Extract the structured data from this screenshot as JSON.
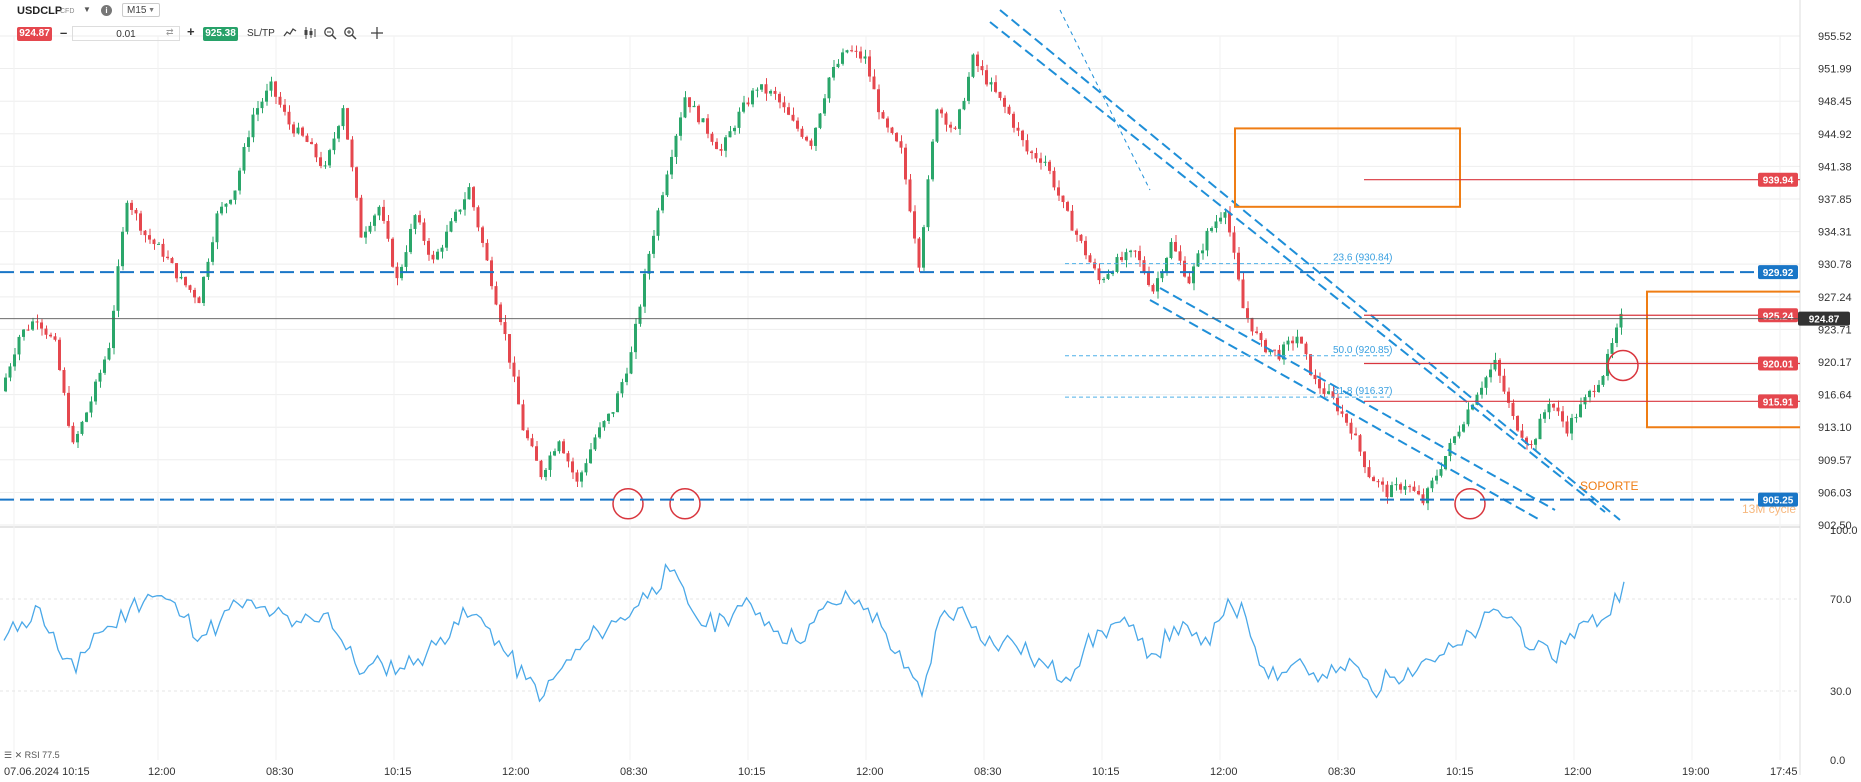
{
  "toolbar": {
    "symbol": "USDCLP",
    "instrument_type": "CFD",
    "info_icon": "info-icon",
    "timeframe": "M15",
    "sell_price": "924.87",
    "lot_size": "0.01",
    "buy_price": "925.38",
    "sltp_label": "SL/TP",
    "tools": [
      "line-chart-icon",
      "candles-icon",
      "zoom-out-icon",
      "zoom-in-icon",
      "crosshair-icon"
    ]
  },
  "colors": {
    "bull": "#2aa66a",
    "bear": "#e5474e",
    "trend_blue": "#1f8fd8",
    "level_blue": "#1976c7",
    "orange": "#ef7d14",
    "red_line": "#d9363e",
    "rsi_line": "#4aa8e8",
    "current_badge": "#333333"
  },
  "chart_data": [
    {
      "type": "candlestick",
      "symbol": "USDCLP",
      "timeframe": "M15",
      "ylim": [
        902.5,
        955.52
      ],
      "price_ticks": [
        "955.52",
        "951.99",
        "948.45",
        "944.92",
        "941.38",
        "937.85",
        "934.31",
        "930.78",
        "927.24",
        "923.71",
        "920.17",
        "916.64",
        "913.10",
        "909.57",
        "906.03",
        "902.50"
      ],
      "time_ticks": [
        "07.06.2024 10:15",
        "12:00",
        "08:30",
        "10:15",
        "12:00",
        "08:30",
        "10:15",
        "12:00",
        "08:30",
        "10:15",
        "12:00",
        "08:30",
        "10:15",
        "12:00",
        "19:00",
        "17:45"
      ],
      "close_path": [
        [
          0,
          917
        ],
        [
          1,
          923
        ],
        [
          2,
          925
        ],
        [
          3,
          922
        ],
        [
          4,
          911
        ],
        [
          5,
          916
        ],
        [
          6,
          922
        ],
        [
          7,
          938
        ],
        [
          8,
          934
        ],
        [
          9,
          932
        ],
        [
          10,
          929
        ],
        [
          11,
          927
        ],
        [
          12,
          936
        ],
        [
          13,
          939
        ],
        [
          14,
          947
        ],
        [
          15,
          950
        ],
        [
          16,
          946
        ],
        [
          17,
          944
        ],
        [
          18,
          941
        ],
        [
          19,
          948
        ],
        [
          20,
          934
        ],
        [
          21,
          937
        ],
        [
          22,
          929
        ],
        [
          23,
          936
        ],
        [
          24,
          931
        ],
        [
          25,
          935
        ],
        [
          26,
          939
        ],
        [
          27,
          931
        ],
        [
          28,
          923
        ],
        [
          29,
          913
        ],
        [
          30,
          908
        ],
        [
          31,
          912
        ],
        [
          32,
          907
        ],
        [
          33,
          912
        ],
        [
          34,
          915
        ],
        [
          35,
          921
        ],
        [
          36,
          932
        ],
        [
          37,
          941
        ],
        [
          38,
          949
        ],
        [
          39,
          946
        ],
        [
          40,
          943
        ],
        [
          41,
          947
        ],
        [
          42,
          950
        ],
        [
          43,
          949
        ],
        [
          44,
          946
        ],
        [
          45,
          944
        ],
        [
          46,
          951
        ],
        [
          47,
          954
        ],
        [
          48,
          953
        ],
        [
          49,
          946
        ],
        [
          50,
          943
        ],
        [
          51,
          931
        ],
        [
          52,
          948
        ],
        [
          53,
          945
        ],
        [
          54,
          953
        ],
        [
          55,
          950
        ],
        [
          56,
          947
        ],
        [
          57,
          943
        ],
        [
          58,
          942
        ],
        [
          59,
          937
        ],
        [
          60,
          933
        ],
        [
          61,
          929
        ],
        [
          62,
          931
        ],
        [
          63,
          932
        ],
        [
          64,
          928
        ],
        [
          65,
          933
        ],
        [
          66,
          929
        ],
        [
          67,
          934
        ],
        [
          68,
          937
        ],
        [
          69,
          926
        ],
        [
          70,
          922
        ],
        [
          71,
          921
        ],
        [
          72,
          923
        ],
        [
          73,
          918
        ],
        [
          74,
          916
        ],
        [
          75,
          913
        ],
        [
          76,
          908
        ],
        [
          77,
          906
        ],
        [
          78,
          907
        ],
        [
          79,
          905
        ],
        [
          80,
          909
        ],
        [
          81,
          913
        ],
        [
          82,
          917
        ],
        [
          83,
          920
        ],
        [
          84,
          914
        ],
        [
          85,
          911
        ],
        [
          86,
          916
        ],
        [
          87,
          913
        ],
        [
          88,
          916
        ],
        [
          89,
          919
        ],
        [
          90,
          924.87
        ]
      ],
      "horizontal_levels": [
        {
          "price": 939.94,
          "label": "939.94",
          "color": "red"
        },
        {
          "price": 929.92,
          "label": "929.92",
          "color": "blue",
          "style": "dashed"
        },
        {
          "price": 925.24,
          "label": "925.24",
          "color": "red"
        },
        {
          "price": 924.87,
          "label": "924.87",
          "color": "current"
        },
        {
          "price": 920.01,
          "label": "920.01",
          "color": "red"
        },
        {
          "price": 915.91,
          "label": "915.91",
          "color": "red"
        },
        {
          "price": 905.25,
          "label": "905.25",
          "color": "blue",
          "style": "dashed"
        }
      ],
      "annotations": [
        {
          "text": "23.6 (930.84)",
          "kind": "fibonacci"
        },
        {
          "text": "50.0 (920.85)",
          "kind": "fibonacci"
        },
        {
          "text": "61.8 (916.37)",
          "kind": "fibonacci"
        },
        {
          "text": "SOPORTE",
          "kind": "label"
        },
        {
          "text": "13M cycle",
          "kind": "label"
        }
      ]
    },
    {
      "type": "line",
      "name": "RSI",
      "legend": "RSI 77.5",
      "ylim": [
        0,
        100
      ],
      "ticks": [
        "100.0",
        "70.0",
        "30.0",
        "0.0"
      ],
      "values": [
        52,
        60,
        66,
        48,
        38,
        55,
        58,
        66,
        72,
        70,
        62,
        54,
        60,
        68,
        66,
        64,
        58,
        62,
        64,
        48,
        38,
        42,
        40,
        44,
        50,
        60,
        63,
        57,
        45,
        35,
        28,
        40,
        48,
        56,
        60,
        66,
        75,
        82,
        68,
        58,
        62,
        67,
        64,
        56,
        52,
        60,
        68,
        70,
        66,
        55,
        40,
        28,
        62,
        66,
        58,
        50,
        52,
        45,
        40,
        36,
        48,
        56,
        60,
        52,
        46,
        58,
        54,
        50,
        70,
        62,
        40,
        38,
        44,
        34,
        38,
        42,
        30,
        36,
        40,
        44,
        46,
        50,
        58,
        65,
        60,
        48,
        44,
        55,
        60,
        62,
        77.5
      ]
    }
  ]
}
